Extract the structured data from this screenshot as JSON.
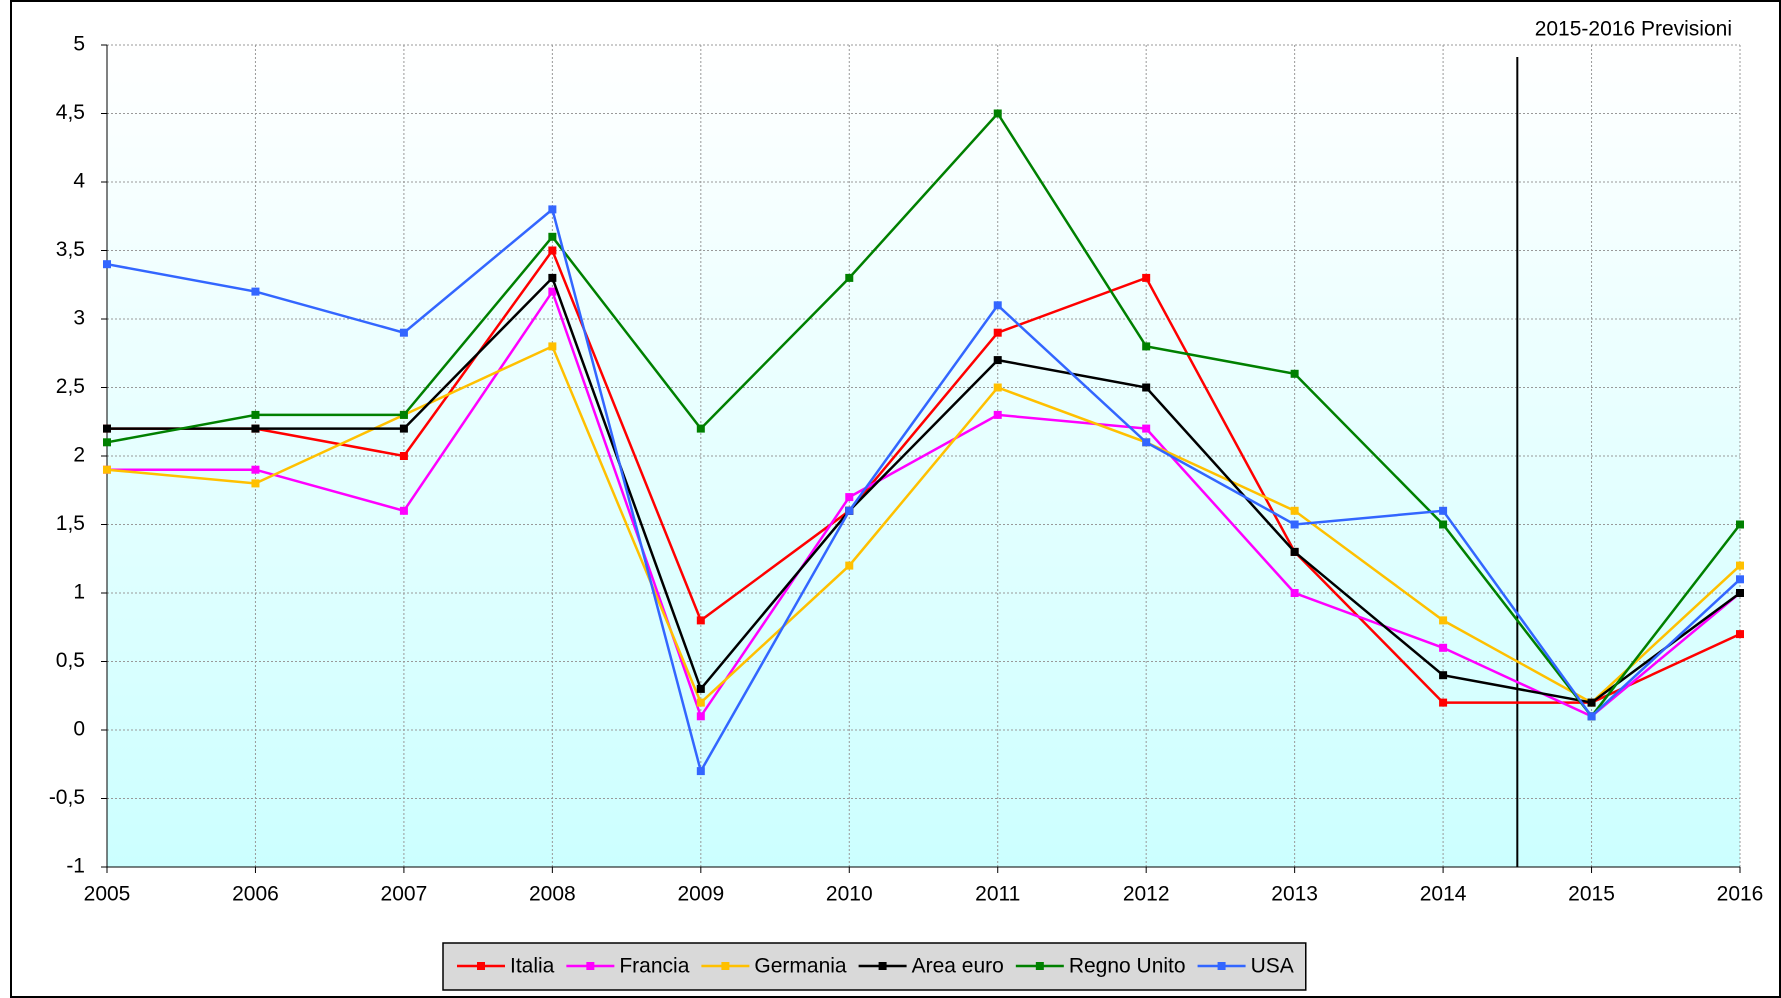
{
  "chart_data": {
    "type": "line",
    "annotation": "2015-2016 Previsioni",
    "forecast_from": "2015",
    "categories": [
      "2005",
      "2006",
      "2007",
      "2008",
      "2009",
      "2010",
      "2011",
      "2012",
      "2013",
      "2014",
      "2015",
      "2016"
    ],
    "series": [
      {
        "name": "Italia",
        "color": "#ff0000",
        "values": [
          2.2,
          2.2,
          2.0,
          3.5,
          0.8,
          1.6,
          2.9,
          3.3,
          1.3,
          0.2,
          0.2,
          0.7
        ]
      },
      {
        "name": "Francia",
        "color": "#ff00ff",
        "values": [
          1.9,
          1.9,
          1.6,
          3.2,
          0.1,
          1.7,
          2.3,
          2.2,
          1.0,
          0.6,
          0.1,
          1.0
        ]
      },
      {
        "name": "Germania",
        "color": "#ffc000",
        "values": [
          1.9,
          1.8,
          2.3,
          2.8,
          0.2,
          1.2,
          2.5,
          2.1,
          1.6,
          0.8,
          0.2,
          1.2
        ]
      },
      {
        "name": "Area euro",
        "color": "#000000",
        "values": [
          2.2,
          2.2,
          2.2,
          3.3,
          0.3,
          1.6,
          2.7,
          2.5,
          1.3,
          0.4,
          0.2,
          1.0
        ]
      },
      {
        "name": "Regno Unito",
        "color": "#008000",
        "values": [
          2.1,
          2.3,
          2.3,
          3.6,
          2.2,
          3.3,
          4.5,
          2.8,
          2.6,
          1.5,
          0.1,
          1.5
        ]
      },
      {
        "name": "USA",
        "color": "#3366ff",
        "values": [
          3.4,
          3.2,
          2.9,
          3.8,
          -0.3,
          1.6,
          3.1,
          2.1,
          1.5,
          1.6,
          0.1,
          1.1
        ]
      }
    ],
    "ylim": [
      -1,
      5
    ],
    "yticks": [
      -1,
      {
        "value": -0.5,
        "label": "-0,5"
      },
      0,
      {
        "value": 0.5,
        "label": "0,5"
      },
      1,
      {
        "value": 1.5,
        "label": "1,5"
      },
      2,
      {
        "value": 2.5,
        "label": "2,5"
      },
      3,
      {
        "value": 3.5,
        "label": "3,5"
      },
      4,
      {
        "value": 4.5,
        "label": "4,5"
      },
      5
    ],
    "grid": true,
    "legend": "bottom"
  }
}
